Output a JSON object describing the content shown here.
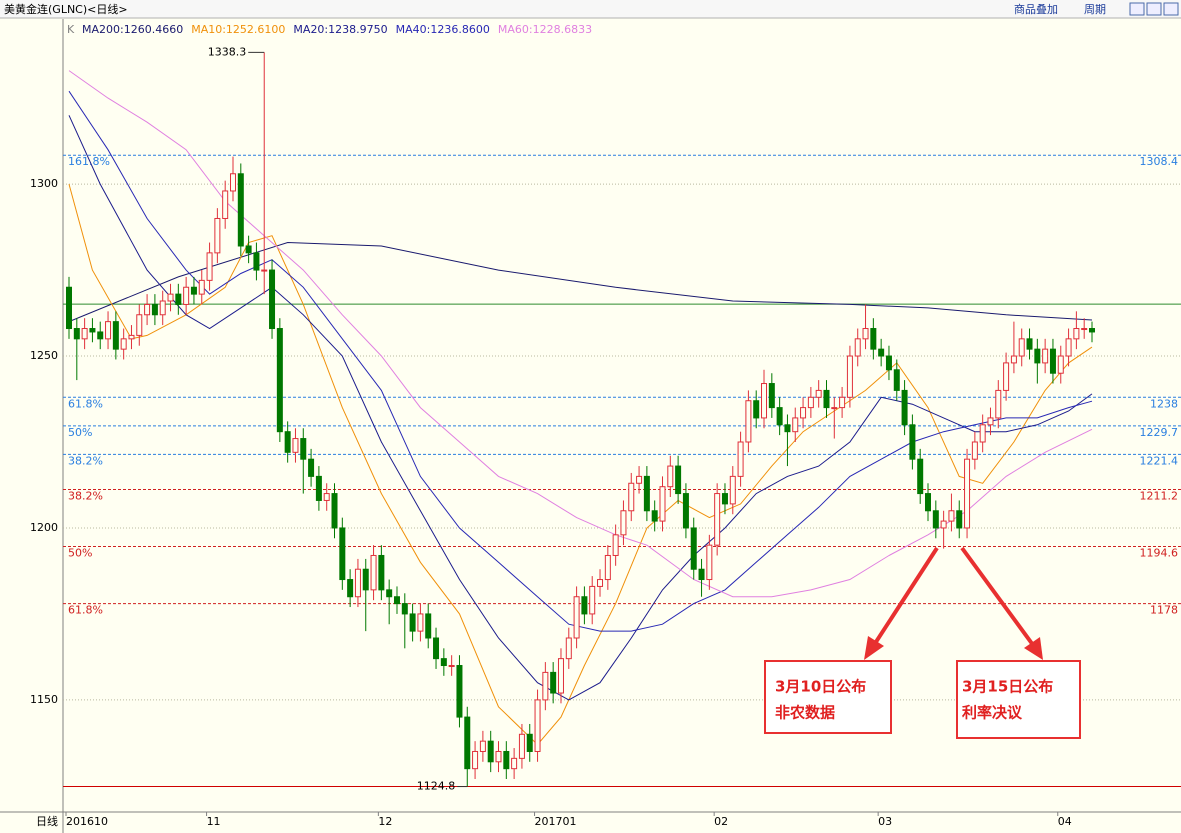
{
  "chart_data": {
    "type": "candlestick",
    "title": "美黄金连(GLNC)<日线>",
    "toolbar": [
      "商品叠加",
      "周期"
    ],
    "indicator_label": "K",
    "period_label": "日线",
    "ylim": [
      1117.4,
      1348.3
    ],
    "yticks": [
      1150,
      1200,
      1250,
      1300
    ],
    "grid": true,
    "up_color": "#e0303a",
    "down_color": "#007800",
    "categories": [
      "201610",
      null,
      null,
      null,
      null,
      null,
      null,
      null,
      null,
      null,
      null,
      null,
      null,
      null,
      null,
      null,
      null,
      null,
      "11",
      null,
      null,
      null,
      null,
      null,
      null,
      null,
      null,
      null,
      null,
      null,
      null,
      null,
      null,
      null,
      null,
      null,
      null,
      null,
      null,
      null,
      "12",
      null,
      null,
      null,
      null,
      null,
      null,
      null,
      null,
      null,
      null,
      null,
      null,
      null,
      null,
      null,
      null,
      null,
      null,
      null,
      "201701",
      null,
      null,
      null,
      null,
      null,
      null,
      null,
      null,
      null,
      null,
      null,
      null,
      null,
      null,
      null,
      null,
      null,
      null,
      null,
      null,
      null,
      null,
      "02",
      null,
      null,
      null,
      null,
      null,
      null,
      null,
      null,
      null,
      null,
      null,
      null,
      null,
      null,
      null,
      null,
      null,
      null,
      null,
      null,
      "03",
      null,
      null,
      null,
      null,
      null,
      null,
      null,
      null,
      null,
      null,
      null,
      null,
      null,
      null,
      null,
      null,
      null,
      null,
      null,
      null,
      null,
      null,
      "04",
      null,
      null,
      null,
      null
    ],
    "open": [
      1270,
      1258,
      1255,
      1258,
      1257,
      1255,
      1260,
      1252,
      1255,
      1256,
      1262,
      1265,
      1262,
      1266,
      1268,
      1265,
      1270,
      1268,
      1272,
      1280,
      1290,
      1298,
      1303,
      1282,
      1280,
      1275,
      1275,
      1258,
      1228,
      1222,
      1226,
      1220,
      1215,
      1208,
      1210,
      1200,
      1185,
      1180,
      1188,
      1182,
      1192,
      1182,
      1180,
      1178,
      1175,
      1170,
      1175,
      1168,
      1162,
      1160,
      1160,
      1145,
      1130,
      1135,
      1138,
      1132,
      1135,
      1130,
      1133,
      1140,
      1135,
      1150,
      1158,
      1152,
      1162,
      1168,
      1180,
      1175,
      1183,
      1185,
      1192,
      1198,
      1205,
      1213,
      1215,
      1205,
      1202,
      1212,
      1218,
      1210,
      1200,
      1188,
      1185,
      1195,
      1210,
      1207,
      1215,
      1225,
      1237,
      1232,
      1242,
      1235,
      1230,
      1228,
      1232,
      1235,
      1238,
      1240,
      1235,
      1235,
      1238,
      1250,
      1255,
      1258,
      1252,
      1250,
      1246,
      1240,
      1230,
      1220,
      1210,
      1205,
      1200,
      1202,
      1205,
      1200,
      1220,
      1225,
      1230,
      1232,
      1240,
      1248,
      1250,
      1255,
      1252,
      1248,
      1252,
      1245,
      1250,
      1255,
      1258,
      1258
    ],
    "high": [
      1273,
      1261,
      1261,
      1261,
      1260,
      1263,
      1263,
      1258,
      1259,
      1265,
      1268,
      1268,
      1269,
      1271,
      1271,
      1273,
      1273,
      1275,
      1283,
      1293,
      1301,
      1308,
      1306,
      1285,
      1283,
      1338.3,
      1278,
      1261,
      1231,
      1229,
      1229,
      1223,
      1218,
      1213,
      1213,
      1203,
      1188,
      1191,
      1191,
      1195,
      1195,
      1185,
      1183,
      1181,
      1178,
      1178,
      1178,
      1171,
      1165,
      1163,
      1163,
      1148,
      1138,
      1141,
      1141,
      1138,
      1138,
      1136,
      1143,
      1143,
      1153,
      1161,
      1161,
      1165,
      1171,
      1183,
      1183,
      1186,
      1188,
      1195,
      1201,
      1208,
      1216,
      1218,
      1218,
      1208,
      1215,
      1221,
      1221,
      1213,
      1203,
      1191,
      1198,
      1213,
      1213,
      1218,
      1228,
      1240,
      1240,
      1246,
      1245,
      1238,
      1233,
      1235,
      1238,
      1241,
      1243,
      1243,
      1238,
      1241,
      1253,
      1258,
      1265,
      1261,
      1255,
      1253,
      1249,
      1243,
      1233,
      1223,
      1213,
      1208,
      1205,
      1210,
      1208,
      1223,
      1228,
      1233,
      1235,
      1243,
      1251,
      1260,
      1258,
      1258,
      1255,
      1255,
      1255,
      1253,
      1258,
      1263,
      1261,
      1260
    ],
    "low": [
      1255,
      1243,
      1252,
      1254,
      1252,
      1252,
      1249,
      1249,
      1252,
      1253,
      1259,
      1259,
      1259,
      1263,
      1262,
      1262,
      1265,
      1265,
      1269,
      1277,
      1287,
      1295,
      1279,
      1277,
      1272,
      1268,
      1255,
      1225,
      1219,
      1219,
      1210,
      1212,
      1205,
      1205,
      1197,
      1182,
      1177,
      1177,
      1170,
      1179,
      1179,
      1172,
      1175,
      1165,
      1167,
      1167,
      1165,
      1159,
      1157,
      1157,
      1142,
      1124.8,
      1127,
      1132,
      1129,
      1129,
      1127,
      1127,
      1130,
      1132,
      1132,
      1147,
      1149,
      1149,
      1159,
      1165,
      1172,
      1172,
      1180,
      1182,
      1189,
      1195,
      1202,
      1210,
      1202,
      1199,
      1199,
      1209,
      1207,
      1197,
      1185,
      1180,
      1182,
      1192,
      1204,
      1204,
      1212,
      1222,
      1229,
      1229,
      1232,
      1227,
      1218,
      1225,
      1229,
      1232,
      1235,
      1232,
      1226,
      1232,
      1235,
      1247,
      1252,
      1249,
      1247,
      1243,
      1237,
      1227,
      1217,
      1207,
      1202,
      1197,
      1194,
      1199,
      1197,
      1197,
      1217,
      1222,
      1227,
      1229,
      1237,
      1245,
      1247,
      1249,
      1242,
      1245,
      1242,
      1242,
      1247,
      1252,
      1255,
      1254
    ],
    "close": [
      1258,
      1255,
      1258,
      1257,
      1255,
      1260,
      1252,
      1255,
      1256,
      1262,
      1265,
      1262,
      1266,
      1268,
      1265,
      1270,
      1268,
      1272,
      1280,
      1290,
      1298,
      1303,
      1282,
      1280,
      1275,
      1275,
      1258,
      1228,
      1222,
      1226,
      1220,
      1215,
      1208,
      1210,
      1200,
      1185,
      1180,
      1188,
      1182,
      1192,
      1182,
      1180,
      1178,
      1175,
      1170,
      1175,
      1168,
      1162,
      1160,
      1160,
      1145,
      1130,
      1135,
      1138,
      1132,
      1135,
      1130,
      1133,
      1140,
      1135,
      1150,
      1158,
      1152,
      1162,
      1168,
      1180,
      1175,
      1183,
      1185,
      1192,
      1198,
      1205,
      1213,
      1215,
      1205,
      1202,
      1212,
      1218,
      1210,
      1200,
      1188,
      1185,
      1195,
      1210,
      1207,
      1215,
      1225,
      1237,
      1232,
      1242,
      1235,
      1230,
      1228,
      1232,
      1235,
      1238,
      1240,
      1235,
      1235,
      1238,
      1250,
      1255,
      1258,
      1252,
      1250,
      1246,
      1240,
      1230,
      1220,
      1210,
      1205,
      1200,
      1202,
      1205,
      1200,
      1220,
      1225,
      1230,
      1232,
      1240,
      1248,
      1250,
      1255,
      1252,
      1248,
      1252,
      1245,
      1250,
      1255,
      1258,
      1258,
      1257
    ],
    "series": [
      {
        "name": "MA200:1260.4660",
        "color": "#1a1a6e",
        "x": [
          0,
          14,
          28,
          40,
          55,
          70,
          85,
          100,
          110,
          120,
          131
        ],
        "values": [
          1260,
          1273,
          1283,
          1282,
          1275,
          1270,
          1266,
          1265,
          1264,
          1262,
          1260.466
        ]
      },
      {
        "name": "MA10:1252.6100",
        "color": "#f0900a",
        "x": [
          0,
          3,
          8,
          10,
          15,
          20,
          23,
          26,
          30,
          35,
          40,
          45,
          50,
          55,
          60,
          63,
          66,
          70,
          74,
          78,
          82,
          86,
          90,
          94,
          98,
          102,
          106,
          110,
          114,
          117,
          121,
          125,
          128,
          131
        ],
        "values": [
          1300,
          1275,
          1255,
          1256,
          1262,
          1270,
          1283,
          1285,
          1265,
          1235,
          1210,
          1190,
          1175,
          1148,
          1137,
          1145,
          1160,
          1178,
          1200,
          1208,
          1203,
          1207,
          1218,
          1228,
          1234,
          1240,
          1248,
          1235,
          1215,
          1213,
          1225,
          1240,
          1248,
          1252.61
        ]
      },
      {
        "name": "MA20:1238.9750",
        "color": "#1c1c8c",
        "x": [
          0,
          4,
          10,
          15,
          18,
          22,
          26,
          30,
          35,
          40,
          45,
          50,
          55,
          60,
          64,
          68,
          72,
          76,
          80,
          84,
          88,
          92,
          96,
          100,
          104,
          108,
          112,
          116,
          120,
          124,
          128,
          131
        ],
        "values": [
          1320,
          1300,
          1275,
          1262,
          1258,
          1264,
          1270,
          1262,
          1250,
          1225,
          1205,
          1185,
          1168,
          1155,
          1150,
          1155,
          1168,
          1182,
          1192,
          1200,
          1210,
          1215,
          1218,
          1225,
          1238,
          1236,
          1232,
          1228,
          1228,
          1230,
          1234,
          1238.975
        ]
      },
      {
        "name": "MA40:1236.8600",
        "color": "#2828b4",
        "x": [
          0,
          5,
          10,
          15,
          18,
          22,
          26,
          30,
          35,
          40,
          45,
          50,
          55,
          60,
          64,
          68,
          72,
          76,
          80,
          84,
          88,
          92,
          96,
          100,
          104,
          108,
          112,
          116,
          120,
          124,
          128,
          131
        ],
        "values": [
          1327,
          1310,
          1290,
          1275,
          1268,
          1274,
          1278,
          1270,
          1255,
          1240,
          1215,
          1200,
          1190,
          1180,
          1172,
          1170,
          1170,
          1172,
          1178,
          1182,
          1190,
          1198,
          1206,
          1215,
          1220,
          1225,
          1228,
          1230,
          1232,
          1232,
          1235,
          1236.86
        ]
      },
      {
        "name": "MA60:1228.6833",
        "color": "#e080e0",
        "x": [
          0,
          5,
          10,
          15,
          20,
          25,
          30,
          35,
          40,
          45,
          50,
          55,
          60,
          65,
          70,
          74,
          80,
          85,
          90,
          95,
          100,
          105,
          110,
          115,
          120,
          125,
          131
        ],
        "values": [
          1333,
          1325,
          1318,
          1310,
          1295,
          1285,
          1275,
          1262,
          1250,
          1235,
          1225,
          1215,
          1210,
          1203,
          1198,
          1195,
          1185,
          1180,
          1180,
          1182,
          1185,
          1192,
          1198,
          1205,
          1215,
          1222,
          1228.6833
        ]
      }
    ],
    "fib_lines": [
      {
        "value": 1308.4,
        "label": "161.8%",
        "color": "#2a7fe0"
      },
      {
        "value": 1238.0,
        "label": "61.8%",
        "color": "#2a7fe0"
      },
      {
        "value": 1229.7,
        "label": "50%",
        "color": "#2a7fe0"
      },
      {
        "value": 1221.4,
        "label": "38.2%",
        "color": "#2a7fe0"
      },
      {
        "value": 1211.2,
        "label": "38.2%",
        "color": "#d02020"
      },
      {
        "value": 1194.6,
        "label": "50%",
        "color": "#d02020"
      },
      {
        "value": 1178.0,
        "label": "61.8%",
        "color": "#d02020"
      }
    ],
    "reference_lines": [
      {
        "value": 1265.1,
        "color": "#2e8b2e"
      },
      {
        "value": 1124.8,
        "color": "#d00000"
      }
    ],
    "annotations": [
      {
        "lines": [
          "3月10日公布",
          "非农数据"
        ]
      },
      {
        "lines": [
          "3月15日公布",
          "利率决议"
        ]
      }
    ]
  }
}
